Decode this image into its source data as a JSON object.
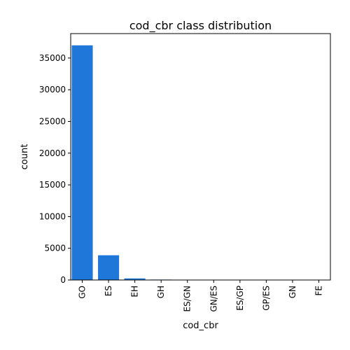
{
  "chart_data": {
    "type": "bar",
    "title": "cod_cbr class distribution",
    "xlabel": "cod_cbr",
    "ylabel": "count",
    "categories": [
      "GO",
      "ES",
      "EH",
      "GH",
      "ES/GN",
      "GN/ES",
      "ES/GP",
      "GP/ES",
      "GN",
      "FE"
    ],
    "values": [
      37000,
      3900,
      250,
      70,
      50,
      40,
      30,
      25,
      20,
      15
    ],
    "ylim": [
      0,
      38850
    ],
    "yticks": [
      0,
      5000,
      10000,
      15000,
      20000,
      25000,
      30000,
      35000
    ],
    "grid": false,
    "bar_color": "#1f77d9"
  }
}
